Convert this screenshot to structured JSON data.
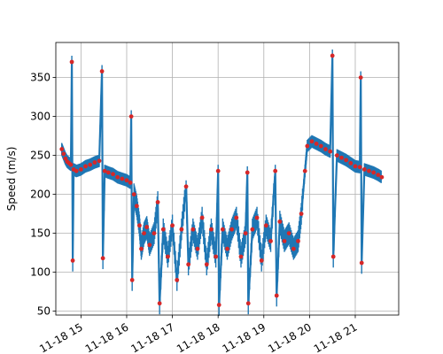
{
  "chart_data": {
    "type": "line",
    "title": "",
    "xlabel": "",
    "ylabel": "Speed (m/s)",
    "grid": true,
    "legend": "none",
    "xlim": [
      14.45,
      21.95
    ],
    "ylim": [
      45,
      395
    ],
    "x_ticks": [
      {
        "value": 15,
        "label": "11-18 15"
      },
      {
        "value": 16,
        "label": "11-18 16"
      },
      {
        "value": 17,
        "label": "11-18 17"
      },
      {
        "value": 18,
        "label": "11-18 18"
      },
      {
        "value": 19,
        "label": "11-18 19"
      },
      {
        "value": 20,
        "label": "11-18 20"
      },
      {
        "value": 21,
        "label": "11-18 21"
      }
    ],
    "y_ticks": [
      50,
      100,
      150,
      200,
      250,
      300,
      350
    ],
    "series": [
      {
        "line_color": "#1f77b4",
        "marker_color": "#d62728",
        "x_unit": "hour of 11-18",
        "points": [
          [
            14.58,
            258
          ],
          [
            14.62,
            252
          ],
          [
            14.66,
            246
          ],
          [
            14.7,
            242
          ],
          [
            14.74,
            240
          ],
          [
            14.78,
            238
          ],
          [
            14.8,
            370
          ],
          [
            14.82,
            115
          ],
          [
            14.84,
            232
          ],
          [
            14.9,
            230
          ],
          [
            15.0,
            232
          ],
          [
            15.1,
            236
          ],
          [
            15.2,
            238
          ],
          [
            15.3,
            241
          ],
          [
            15.4,
            243
          ],
          [
            15.46,
            358
          ],
          [
            15.48,
            118
          ],
          [
            15.52,
            230
          ],
          [
            15.6,
            228
          ],
          [
            15.7,
            226
          ],
          [
            15.8,
            222
          ],
          [
            15.9,
            220
          ],
          [
            16.0,
            218
          ],
          [
            16.08,
            215
          ],
          [
            16.1,
            300
          ],
          [
            16.12,
            90
          ],
          [
            16.16,
            200
          ],
          [
            16.22,
            185
          ],
          [
            16.28,
            160
          ],
          [
            16.32,
            130
          ],
          [
            16.38,
            150
          ],
          [
            16.44,
            158
          ],
          [
            16.5,
            135
          ],
          [
            16.6,
            150
          ],
          [
            16.68,
            190
          ],
          [
            16.72,
            60
          ],
          [
            16.8,
            155
          ],
          [
            16.9,
            120
          ],
          [
            17.0,
            160
          ],
          [
            17.1,
            90
          ],
          [
            17.2,
            155
          ],
          [
            17.3,
            210
          ],
          [
            17.35,
            110
          ],
          [
            17.45,
            155
          ],
          [
            17.55,
            130
          ],
          [
            17.65,
            170
          ],
          [
            17.75,
            110
          ],
          [
            17.85,
            155
          ],
          [
            17.95,
            120
          ],
          [
            18.0,
            230
          ],
          [
            18.02,
            58
          ],
          [
            18.1,
            155
          ],
          [
            18.2,
            130
          ],
          [
            18.3,
            155
          ],
          [
            18.4,
            170
          ],
          [
            18.5,
            120
          ],
          [
            18.6,
            150
          ],
          [
            18.64,
            228
          ],
          [
            18.66,
            60
          ],
          [
            18.75,
            155
          ],
          [
            18.85,
            170
          ],
          [
            18.95,
            115
          ],
          [
            19.05,
            160
          ],
          [
            19.15,
            140
          ],
          [
            19.25,
            230
          ],
          [
            19.28,
            70
          ],
          [
            19.35,
            165
          ],
          [
            19.45,
            140
          ],
          [
            19.55,
            150
          ],
          [
            19.65,
            130
          ],
          [
            19.75,
            140
          ],
          [
            19.82,
            175
          ],
          [
            19.9,
            230
          ],
          [
            19.95,
            262
          ],
          [
            20.05,
            268
          ],
          [
            20.15,
            265
          ],
          [
            20.25,
            262
          ],
          [
            20.35,
            258
          ],
          [
            20.45,
            255
          ],
          [
            20.5,
            378
          ],
          [
            20.52,
            120
          ],
          [
            20.6,
            250
          ],
          [
            20.7,
            247
          ],
          [
            20.8,
            244
          ],
          [
            20.9,
            240
          ],
          [
            21.0,
            236
          ],
          [
            21.1,
            235
          ],
          [
            21.12,
            350
          ],
          [
            21.14,
            112
          ],
          [
            21.2,
            232
          ],
          [
            21.3,
            230
          ],
          [
            21.4,
            228
          ],
          [
            21.5,
            225
          ],
          [
            21.58,
            222
          ]
        ]
      }
    ]
  }
}
